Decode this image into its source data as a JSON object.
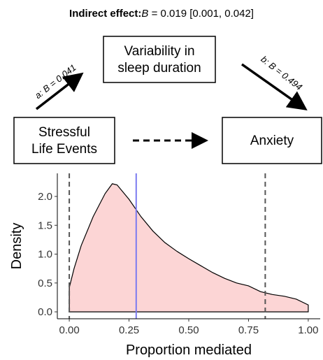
{
  "header": {
    "label": "Indirect effect:",
    "stat": "B",
    "value": " = 0.019 [0.001, 0.042]"
  },
  "nodes": [
    {
      "lines": [
        "Variability in",
        "sleep duration"
      ]
    },
    {
      "lines": [
        "Stressful",
        "Life Events"
      ]
    },
    {
      "lines": [
        "Anxiety"
      ]
    }
  ],
  "paths": [
    {
      "label": "a: ",
      "stat": "B",
      "value": " = 0.041"
    },
    {
      "label": "b: ",
      "stat": "B",
      "value": " = 0.494"
    }
  ],
  "chart_data": {
    "type": "area",
    "color": "#fcd5d5",
    "xlabel": "Proportion mediated",
    "ylabel": "Density",
    "x": [
      0,
      0.02,
      0.05,
      0.1,
      0.15,
      0.18,
      0.2,
      0.25,
      0.3,
      0.35,
      0.4,
      0.45,
      0.5,
      0.55,
      0.6,
      0.65,
      0.7,
      0.75,
      0.8,
      0.85,
      0.9,
      0.95,
      1.0
    ],
    "values": [
      0.42,
      0.75,
      1.15,
      1.65,
      2.05,
      2.22,
      2.2,
      1.95,
      1.65,
      1.4,
      1.2,
      1.05,
      0.92,
      0.8,
      0.68,
      0.58,
      0.5,
      0.45,
      0.35,
      0.3,
      0.27,
      0.22,
      0.12
    ],
    "ci": [
      0.0,
      0.82
    ],
    "ci_color": "#555555",
    "point_estimate": 0.28,
    "point_color": "#7b7bf0",
    "xlim": [
      -0.05,
      1.05
    ],
    "ylim": [
      -0.12,
      2.4
    ],
    "xticks": [
      {
        "value": 0,
        "label": "0.00"
      },
      {
        "value": 0.25,
        "label": "0.25"
      },
      {
        "value": 0.5,
        "label": "0.50"
      },
      {
        "value": 0.75,
        "label": "0.75"
      },
      {
        "value": 1,
        "label": "1.00"
      }
    ],
    "yticks": [
      {
        "value": 0,
        "label": "0.0"
      },
      {
        "value": 0.5,
        "label": "0.5"
      },
      {
        "value": 1,
        "label": "1.0"
      },
      {
        "value": 1.5,
        "label": "1.5"
      },
      {
        "value": 2,
        "label": "2.0"
      }
    ]
  }
}
